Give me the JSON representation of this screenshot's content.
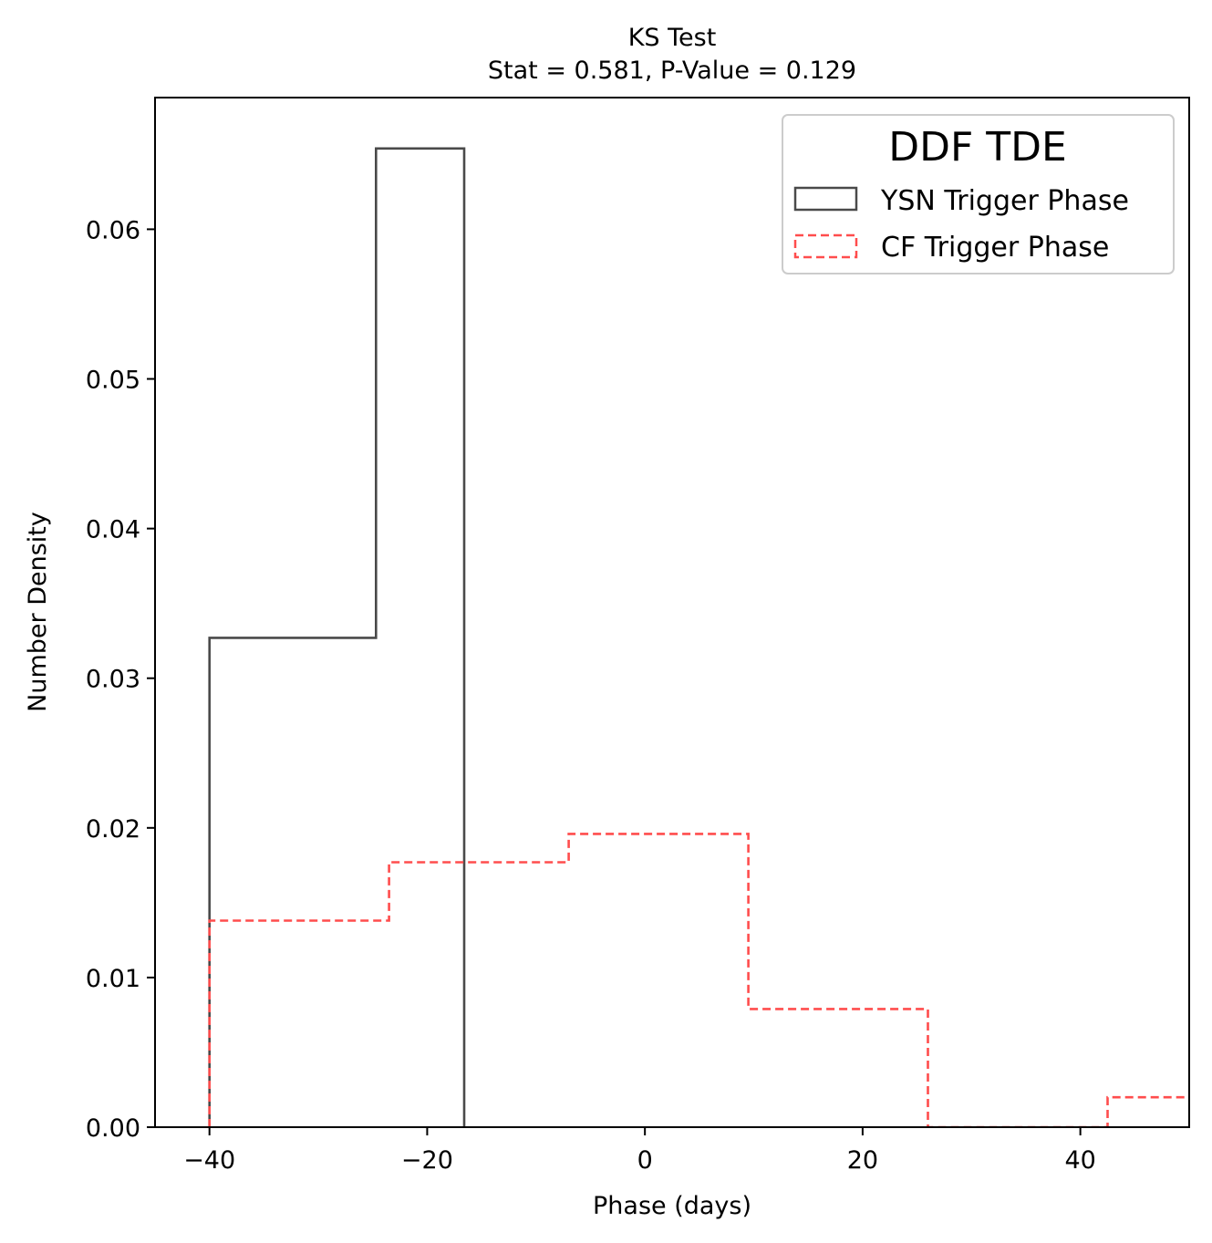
{
  "chart_data": {
    "type": "histogram",
    "title_lines": [
      "KS Test",
      "Stat = 0.581, P-Value = 0.129"
    ],
    "xlabel": "Phase (days)",
    "ylabel": "Number Density",
    "xlim": [
      -45,
      50
    ],
    "ylim": [
      0,
      0.0688
    ],
    "x_ticks": [
      -40,
      -20,
      0,
      20,
      40
    ],
    "x_tick_labels": [
      "−40",
      "−20",
      "0",
      "20",
      "40"
    ],
    "y_ticks": [
      0,
      0.01,
      0.02,
      0.03,
      0.04,
      0.05,
      0.06
    ],
    "y_tick_labels": [
      "0.00",
      "0.01",
      "0.02",
      "0.03",
      "0.04",
      "0.05",
      "0.06"
    ],
    "grid": false,
    "legend": {
      "title": "DDF TDE",
      "position": "top-right"
    },
    "series": [
      {
        "name": "YSN Trigger Phase",
        "color": "#4a4a4a",
        "linestyle": "solid",
        "bin_edges": [
          -40,
          -24.7,
          -16.6
        ],
        "values": [
          0.0327,
          0.0654
        ]
      },
      {
        "name": "CF Trigger Phase",
        "color": "#ff4d4d",
        "linestyle": "dashed",
        "bin_edges": [
          -40,
          -23.5,
          -7,
          9.5,
          26,
          42.5,
          59
        ],
        "values": [
          0.0138,
          0.0177,
          0.0196,
          0.0079,
          0.0,
          0.002
        ]
      }
    ]
  }
}
